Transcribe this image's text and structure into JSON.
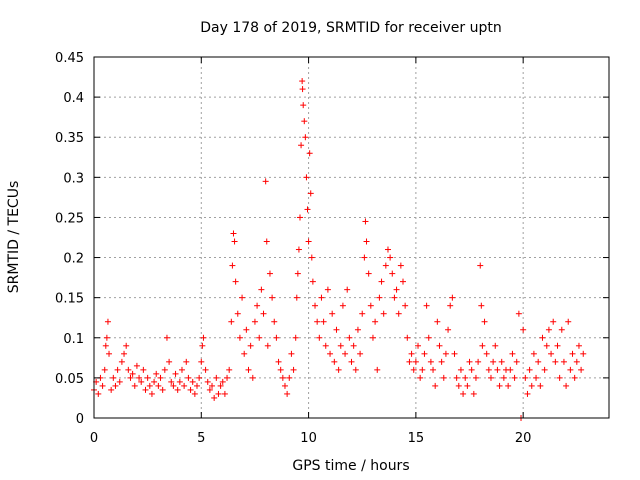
{
  "chart_data": {
    "type": "scatter",
    "title": "Day 178 of 2019, SRMTID for receiver uptn",
    "xlabel": "GPS time / hours",
    "ylabel": "SRMTID / TECUs",
    "xlim": [
      0,
      24
    ],
    "ylim": [
      0,
      0.45
    ],
    "xticks": [
      0,
      5,
      10,
      15,
      20
    ],
    "yticks": [
      0,
      0.05,
      0.1,
      0.15,
      0.2,
      0.25,
      0.3,
      0.35,
      0.4,
      0.45
    ],
    "grid": true,
    "marker": "+",
    "color": "#ff0000",
    "series": [
      {
        "name": "SRMTID",
        "points": [
          [
            0.0,
            0.035
          ],
          [
            0.1,
            0.045
          ],
          [
            0.2,
            0.03
          ],
          [
            0.3,
            0.05
          ],
          [
            0.4,
            0.04
          ],
          [
            0.5,
            0.06
          ],
          [
            0.55,
            0.09
          ],
          [
            0.6,
            0.1
          ],
          [
            0.65,
            0.12
          ],
          [
            0.7,
            0.08
          ],
          [
            0.8,
            0.035
          ],
          [
            0.9,
            0.05
          ],
          [
            1.0,
            0.04
          ],
          [
            1.1,
            0.06
          ],
          [
            1.2,
            0.045
          ],
          [
            1.3,
            0.07
          ],
          [
            1.4,
            0.08
          ],
          [
            1.5,
            0.09
          ],
          [
            1.6,
            0.06
          ],
          [
            1.7,
            0.05
          ],
          [
            1.8,
            0.055
          ],
          [
            1.9,
            0.04
          ],
          [
            2.0,
            0.065
          ],
          [
            2.1,
            0.05
          ],
          [
            2.2,
            0.045
          ],
          [
            2.3,
            0.06
          ],
          [
            2.4,
            0.035
          ],
          [
            2.5,
            0.05
          ],
          [
            2.6,
            0.04
          ],
          [
            2.7,
            0.03
          ],
          [
            2.8,
            0.045
          ],
          [
            2.9,
            0.055
          ],
          [
            3.0,
            0.04
          ],
          [
            3.1,
            0.05
          ],
          [
            3.2,
            0.035
          ],
          [
            3.3,
            0.06
          ],
          [
            3.4,
            0.1
          ],
          [
            3.5,
            0.07
          ],
          [
            3.6,
            0.045
          ],
          [
            3.7,
            0.04
          ],
          [
            3.8,
            0.055
          ],
          [
            3.9,
            0.035
          ],
          [
            4.0,
            0.045
          ],
          [
            4.1,
            0.06
          ],
          [
            4.2,
            0.04
          ],
          [
            4.3,
            0.07
          ],
          [
            4.4,
            0.05
          ],
          [
            4.5,
            0.035
          ],
          [
            4.6,
            0.045
          ],
          [
            4.7,
            0.03
          ],
          [
            4.8,
            0.04
          ],
          [
            4.9,
            0.05
          ],
          [
            5.0,
            0.07
          ],
          [
            5.05,
            0.09
          ],
          [
            5.1,
            0.1
          ],
          [
            5.2,
            0.06
          ],
          [
            5.3,
            0.045
          ],
          [
            5.4,
            0.035
          ],
          [
            5.5,
            0.04
          ],
          [
            5.6,
            0.025
          ],
          [
            5.7,
            0.05
          ],
          [
            5.8,
            0.03
          ],
          [
            5.9,
            0.04
          ],
          [
            6.0,
            0.045
          ],
          [
            6.1,
            0.03
          ],
          [
            6.2,
            0.05
          ],
          [
            6.3,
            0.06
          ],
          [
            6.4,
            0.12
          ],
          [
            6.45,
            0.19
          ],
          [
            6.5,
            0.23
          ],
          [
            6.55,
            0.22
          ],
          [
            6.6,
            0.17
          ],
          [
            6.7,
            0.13
          ],
          [
            6.8,
            0.1
          ],
          [
            6.9,
            0.15
          ],
          [
            7.0,
            0.08
          ],
          [
            7.1,
            0.11
          ],
          [
            7.2,
            0.06
          ],
          [
            7.3,
            0.09
          ],
          [
            7.4,
            0.05
          ],
          [
            7.5,
            0.12
          ],
          [
            7.6,
            0.14
          ],
          [
            7.7,
            0.1
          ],
          [
            7.8,
            0.16
          ],
          [
            7.9,
            0.13
          ],
          [
            8.0,
            0.295
          ],
          [
            8.05,
            0.22
          ],
          [
            8.1,
            0.09
          ],
          [
            8.2,
            0.18
          ],
          [
            8.3,
            0.15
          ],
          [
            8.4,
            0.12
          ],
          [
            8.5,
            0.1
          ],
          [
            8.6,
            0.07
          ],
          [
            8.7,
            0.06
          ],
          [
            8.8,
            0.05
          ],
          [
            8.9,
            0.04
          ],
          [
            9.0,
            0.03
          ],
          [
            9.1,
            0.05
          ],
          [
            9.2,
            0.08
          ],
          [
            9.3,
            0.06
          ],
          [
            9.4,
            0.1
          ],
          [
            9.45,
            0.15
          ],
          [
            9.5,
            0.18
          ],
          [
            9.55,
            0.21
          ],
          [
            9.6,
            0.25
          ],
          [
            9.65,
            0.34
          ],
          [
            9.7,
            0.42
          ],
          [
            9.72,
            0.41
          ],
          [
            9.75,
            0.39
          ],
          [
            9.8,
            0.37
          ],
          [
            9.85,
            0.35
          ],
          [
            9.9,
            0.3
          ],
          [
            9.95,
            0.26
          ],
          [
            10.0,
            0.22
          ],
          [
            10.05,
            0.33
          ],
          [
            10.1,
            0.28
          ],
          [
            10.15,
            0.2
          ],
          [
            10.2,
            0.17
          ],
          [
            10.3,
            0.14
          ],
          [
            10.4,
            0.12
          ],
          [
            10.5,
            0.1
          ],
          [
            10.6,
            0.15
          ],
          [
            10.7,
            0.12
          ],
          [
            10.8,
            0.09
          ],
          [
            10.9,
            0.16
          ],
          [
            11.0,
            0.08
          ],
          [
            11.1,
            0.13
          ],
          [
            11.2,
            0.07
          ],
          [
            11.3,
            0.11
          ],
          [
            11.4,
            0.06
          ],
          [
            11.5,
            0.09
          ],
          [
            11.6,
            0.14
          ],
          [
            11.7,
            0.08
          ],
          [
            11.8,
            0.16
          ],
          [
            11.9,
            0.1
          ],
          [
            12.0,
            0.07
          ],
          [
            12.1,
            0.09
          ],
          [
            12.2,
            0.06
          ],
          [
            12.3,
            0.11
          ],
          [
            12.4,
            0.08
          ],
          [
            12.5,
            0.13
          ],
          [
            12.6,
            0.2
          ],
          [
            12.65,
            0.245
          ],
          [
            12.7,
            0.22
          ],
          [
            12.8,
            0.18
          ],
          [
            12.9,
            0.14
          ],
          [
            13.0,
            0.1
          ],
          [
            13.1,
            0.12
          ],
          [
            13.2,
            0.06
          ],
          [
            13.3,
            0.15
          ],
          [
            13.4,
            0.17
          ],
          [
            13.5,
            0.13
          ],
          [
            13.6,
            0.19
          ],
          [
            13.7,
            0.21
          ],
          [
            13.8,
            0.2
          ],
          [
            13.9,
            0.18
          ],
          [
            14.0,
            0.15
          ],
          [
            14.1,
            0.16
          ],
          [
            14.2,
            0.13
          ],
          [
            14.3,
            0.19
          ],
          [
            14.4,
            0.17
          ],
          [
            14.5,
            0.14
          ],
          [
            14.6,
            0.1
          ],
          [
            14.7,
            0.07
          ],
          [
            14.8,
            0.08
          ],
          [
            14.9,
            0.06
          ],
          [
            15.0,
            0.07
          ],
          [
            15.1,
            0.09
          ],
          [
            15.2,
            0.05
          ],
          [
            15.3,
            0.06
          ],
          [
            15.4,
            0.08
          ],
          [
            15.5,
            0.14
          ],
          [
            15.6,
            0.1
          ],
          [
            15.7,
            0.07
          ],
          [
            15.8,
            0.06
          ],
          [
            15.9,
            0.04
          ],
          [
            16.0,
            0.12
          ],
          [
            16.1,
            0.09
          ],
          [
            16.2,
            0.07
          ],
          [
            16.3,
            0.05
          ],
          [
            16.4,
            0.08
          ],
          [
            16.5,
            0.11
          ],
          [
            16.6,
            0.14
          ],
          [
            16.7,
            0.15
          ],
          [
            16.8,
            0.08
          ],
          [
            16.9,
            0.05
          ],
          [
            17.0,
            0.04
          ],
          [
            17.1,
            0.06
          ],
          [
            17.2,
            0.03
          ],
          [
            17.3,
            0.05
          ],
          [
            17.4,
            0.04
          ],
          [
            17.5,
            0.07
          ],
          [
            17.6,
            0.06
          ],
          [
            17.7,
            0.03
          ],
          [
            17.8,
            0.05
          ],
          [
            17.9,
            0.07
          ],
          [
            18.0,
            0.19
          ],
          [
            18.05,
            0.14
          ],
          [
            18.1,
            0.09
          ],
          [
            18.2,
            0.12
          ],
          [
            18.3,
            0.08
          ],
          [
            18.4,
            0.06
          ],
          [
            18.5,
            0.05
          ],
          [
            18.6,
            0.07
          ],
          [
            18.7,
            0.09
          ],
          [
            18.8,
            0.06
          ],
          [
            18.9,
            0.04
          ],
          [
            19.0,
            0.07
          ],
          [
            19.1,
            0.05
          ],
          [
            19.2,
            0.06
          ],
          [
            19.3,
            0.04
          ],
          [
            19.4,
            0.06
          ],
          [
            19.5,
            0.08
          ],
          [
            19.6,
            0.05
          ],
          [
            19.7,
            0.07
          ],
          [
            19.8,
            0.13
          ],
          [
            19.9,
            0.0
          ],
          [
            20.0,
            0.11
          ],
          [
            20.1,
            0.05
          ],
          [
            20.2,
            0.03
          ],
          [
            20.3,
            0.06
          ],
          [
            20.4,
            0.04
          ],
          [
            20.5,
            0.08
          ],
          [
            20.6,
            0.05
          ],
          [
            20.7,
            0.07
          ],
          [
            20.8,
            0.04
          ],
          [
            20.9,
            0.1
          ],
          [
            21.0,
            0.06
          ],
          [
            21.1,
            0.09
          ],
          [
            21.2,
            0.11
          ],
          [
            21.3,
            0.08
          ],
          [
            21.4,
            0.12
          ],
          [
            21.5,
            0.07
          ],
          [
            21.6,
            0.09
          ],
          [
            21.7,
            0.05
          ],
          [
            21.8,
            0.11
          ],
          [
            21.9,
            0.07
          ],
          [
            22.0,
            0.04
          ],
          [
            22.1,
            0.12
          ],
          [
            22.2,
            0.06
          ],
          [
            22.3,
            0.08
          ],
          [
            22.4,
            0.05
          ],
          [
            22.5,
            0.07
          ],
          [
            22.6,
            0.09
          ],
          [
            22.7,
            0.06
          ],
          [
            22.8,
            0.08
          ]
        ]
      }
    ]
  }
}
